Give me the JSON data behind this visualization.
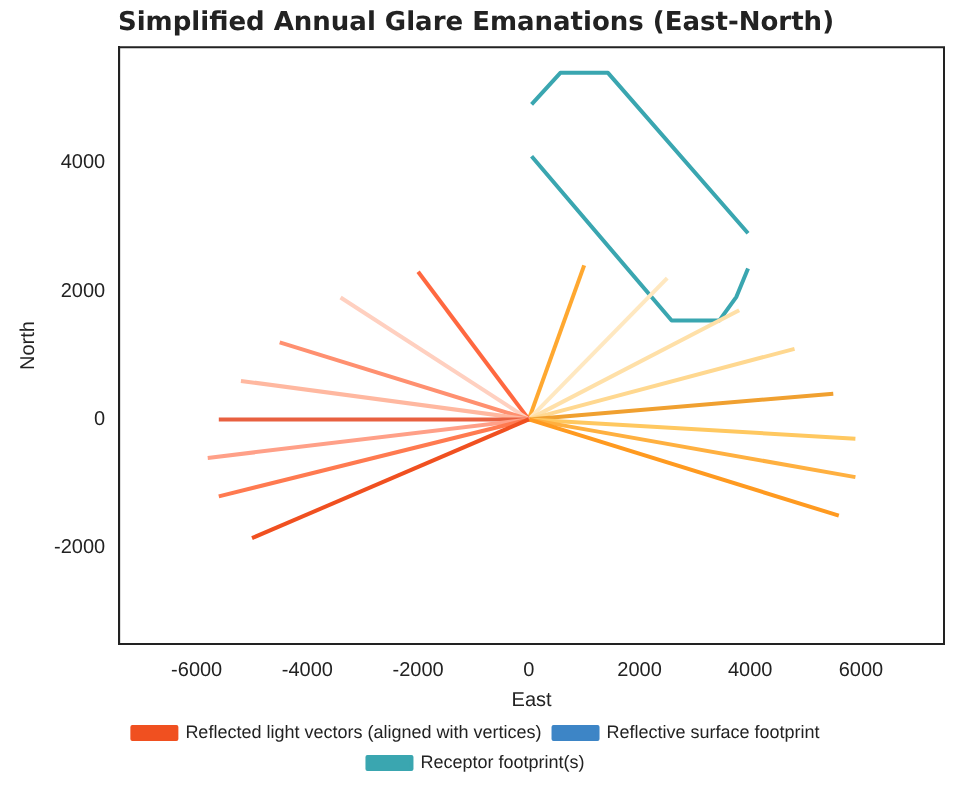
{
  "chart_data": {
    "type": "line",
    "title": "Simplified Annual Glare Emanations (East-North)",
    "xlabel": "East",
    "ylabel": "North",
    "xlim": [
      -7400,
      7500
    ],
    "ylim": [
      -3500,
      5800
    ],
    "xticks": [
      -6000,
      -4000,
      -2000,
      0,
      2000,
      4000,
      6000
    ],
    "yticks": [
      -2000,
      0,
      2000,
      4000
    ],
    "grid": false,
    "legend": "bottom",
    "marker": "none",
    "series": [
      {
        "name": "Reflected light vectors (aligned with vertices)",
        "color": "#f05020",
        "x": [
          -5000,
          0
        ],
        "values": [
          -1850,
          0
        ]
      },
      {
        "color": "#ff7a50",
        "x": [
          -5600,
          0
        ],
        "values": [
          -1200,
          0
        ]
      },
      {
        "color": "#ffa088",
        "x": [
          -5800,
          0
        ],
        "values": [
          -600,
          0
        ]
      },
      {
        "color": "#e86040",
        "x": [
          -5600,
          0
        ],
        "values": [
          0,
          0
        ]
      },
      {
        "color": "#ffb8a0",
        "x": [
          -5200,
          0
        ],
        "values": [
          600,
          0
        ]
      },
      {
        "color": "#ff9070",
        "x": [
          -4500,
          0
        ],
        "values": [
          1200,
          0
        ]
      },
      {
        "color": "#ffd0c0",
        "x": [
          -3400,
          0
        ],
        "values": [
          1900,
          0
        ]
      },
      {
        "color": "#ff6840",
        "x": [
          -2000,
          0
        ],
        "values": [
          2300,
          0
        ]
      },
      {
        "color": "#ff9a20",
        "x": [
          0,
          5600
        ],
        "values": [
          0,
          -1500
        ]
      },
      {
        "color": "#ffb040",
        "x": [
          0,
          5900
        ],
        "values": [
          0,
          -900
        ]
      },
      {
        "color": "#ffc860",
        "x": [
          0,
          5900
        ],
        "values": [
          0,
          -300
        ]
      },
      {
        "color": "#f0a030",
        "x": [
          0,
          5500
        ],
        "values": [
          0,
          400
        ]
      },
      {
        "color": "#ffd890",
        "x": [
          0,
          4800
        ],
        "values": [
          0,
          1100
        ]
      },
      {
        "color": "#ffe0a8",
        "x": [
          0,
          3800
        ],
        "values": [
          0,
          1700
        ]
      },
      {
        "color": "#ffe8c0",
        "x": [
          0,
          2500
        ],
        "values": [
          0,
          2200
        ]
      },
      {
        "color": "#ffa830",
        "x": [
          0,
          1000
        ],
        "values": [
          0,
          2400
        ]
      },
      {
        "name": "Reflective surface footprint",
        "color": "#3d85c6"
      },
      {
        "name": "Receptor footprint(s)",
        "color": "#3aa6b0",
        "x": [
          50,
          570,
          1430,
          3960
        ],
        "values": [
          4910,
          5400,
          5400,
          2900
        ]
      },
      {
        "color": "#3aa6b0",
        "x": [
          50,
          2580,
          3440,
          3750,
          3960
        ],
        "values": [
          4100,
          1540,
          1540,
          1910,
          2350
        ]
      }
    ]
  }
}
